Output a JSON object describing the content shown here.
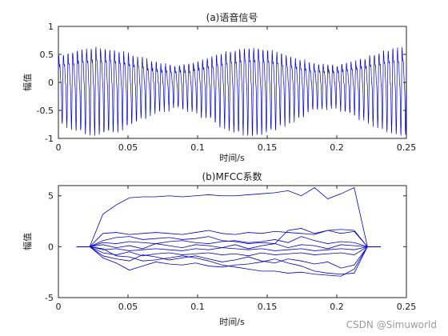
{
  "watermark": "CSDN @Simuworld",
  "chart_data": [
    {
      "type": "line",
      "title": "(a)语音信号",
      "xlabel": "时间/s",
      "ylabel": "幅值",
      "xlim": [
        0,
        0.25
      ],
      "ylim": [
        -1,
        1
      ],
      "xticks": [
        "0",
        "0.05",
        "0.1",
        "0.15",
        "0.2",
        "0.25"
      ],
      "yticks": [
        "1",
        "0.5",
        "0",
        "-0.5",
        "-1"
      ],
      "grid": false,
      "color": "#0000CC",
      "signal": {
        "x_start": 0,
        "x_end": 0.25,
        "dominant_frequency_hz": 300,
        "peak_amplitude_min": 0.55,
        "peak_amplitude_max": 0.8,
        "trough_amplitude_min": -0.5,
        "trough_amplitude_max": -0.95
      }
    },
    {
      "type": "line",
      "title": "(b)MFCC系数",
      "xlabel": "时间/s",
      "ylabel": "幅值",
      "xlim": [
        0,
        0.25
      ],
      "ylim": [
        -5,
        6
      ],
      "xticks": [
        "0",
        "0.05",
        "0.1",
        "0.15",
        "0.2",
        "0.25"
      ],
      "yticks": [
        "5",
        "0",
        "-5"
      ],
      "ytick_values": [
        5,
        0,
        -5
      ],
      "grid": false,
      "color": "#0000CC",
      "x": [
        0.013,
        0.0225,
        0.032,
        0.0415,
        0.051,
        0.0605,
        0.07,
        0.0795,
        0.089,
        0.0985,
        0.108,
        0.1175,
        0.127,
        0.1365,
        0.146,
        0.1555,
        0.165,
        0.1745,
        0.184,
        0.1935,
        0.203,
        0.2125,
        0.222,
        0.2315
      ],
      "series": [
        {
          "values": [
            0,
            0,
            3.2,
            4.1,
            4.8,
            4.9,
            4.9,
            5.0,
            4.9,
            5.0,
            5.1,
            5.0,
            5.0,
            5.1,
            5.2,
            5.3,
            5.5,
            5.0,
            5.8,
            4.7,
            5.2,
            5.8,
            0,
            0
          ]
        },
        {
          "values": [
            0,
            0,
            1.3,
            1.4,
            1.2,
            1.3,
            1.4,
            1.3,
            1.2,
            1.4,
            1.6,
            1.3,
            1.2,
            1.4,
            1.3,
            1.5,
            1.4,
            1.3,
            1.2,
            1.6,
            1.7,
            1.6,
            0,
            0
          ]
        },
        {
          "values": [
            0,
            0,
            0.6,
            0.9,
            1.0,
            0.7,
            0.8,
            0.9,
            0.7,
            0.8,
            1.0,
            0.6,
            0.5,
            0.3,
            0.4,
            0.3,
            1.6,
            1.8,
            1.3,
            1.6,
            1.3,
            1.5,
            0,
            0
          ]
        },
        {
          "values": [
            0,
            0,
            0.4,
            0.3,
            0.5,
            0.4,
            0.3,
            0.5,
            0.6,
            0.4,
            0.3,
            0.5,
            0.6,
            0.4,
            0.5,
            0.7,
            0.4,
            1.0,
            0.6,
            0.3,
            0.5,
            0.4,
            0,
            0
          ]
        },
        {
          "values": [
            0,
            0,
            0.2,
            -0.1,
            0.1,
            -0.2,
            0.3,
            0.1,
            -0.1,
            0.2,
            0.1,
            -0.1,
            0.2,
            -0.2,
            0.1,
            0.3,
            -0.1,
            0.2,
            0.1,
            -0.2,
            0.2,
            0.1,
            0,
            0
          ]
        },
        {
          "values": [
            0,
            0,
            -0.3,
            -0.2,
            -0.4,
            -0.3,
            -0.2,
            -0.3,
            -0.4,
            -0.2,
            -0.3,
            -0.1,
            -0.2,
            -0.3,
            -0.2,
            -0.4,
            -0.3,
            -0.2,
            -0.4,
            -0.3,
            -0.2,
            -0.3,
            0,
            0
          ]
        },
        {
          "values": [
            0,
            0,
            -0.6,
            -0.8,
            -0.5,
            -0.9,
            -0.7,
            -0.6,
            -0.8,
            -0.7,
            -0.6,
            -0.8,
            -0.7,
            -0.9,
            -0.6,
            -0.8,
            -0.7,
            -0.6,
            -0.8,
            -0.7,
            -0.6,
            -0.8,
            0,
            0
          ]
        },
        {
          "values": [
            0,
            0,
            -0.9,
            -1.2,
            -1.4,
            -0.8,
            -1.0,
            -1.3,
            -1.1,
            -0.9,
            -1.2,
            -1.5,
            -1.3,
            -1.0,
            -1.4,
            -1.6,
            -1.2,
            -1.4,
            -1.7,
            -1.5,
            -2.1,
            -1.8,
            0,
            0
          ]
        },
        {
          "values": [
            0,
            0,
            -1.1,
            -1.6,
            -2.3,
            -1.9,
            -1.5,
            -1.7,
            -1.8,
            -1.6,
            -1.9,
            -2.0,
            -1.8,
            -1.7,
            -1.5,
            -1.2,
            -1.6,
            -1.9,
            -2.4,
            -2.6,
            -2.7,
            -2.6,
            0,
            0
          ]
        },
        {
          "values": [
            0,
            0,
            -0.2,
            -0.9,
            -1.0,
            -1.4,
            -1.3,
            -1.1,
            -0.9,
            -1.1,
            -1.4,
            -1.8,
            -2.0,
            -2.2,
            -2.4,
            -2.4,
            -2.6,
            -2.5,
            -2.7,
            -2.8,
            -2.9,
            -2.2,
            0,
            0
          ]
        }
      ]
    }
  ]
}
